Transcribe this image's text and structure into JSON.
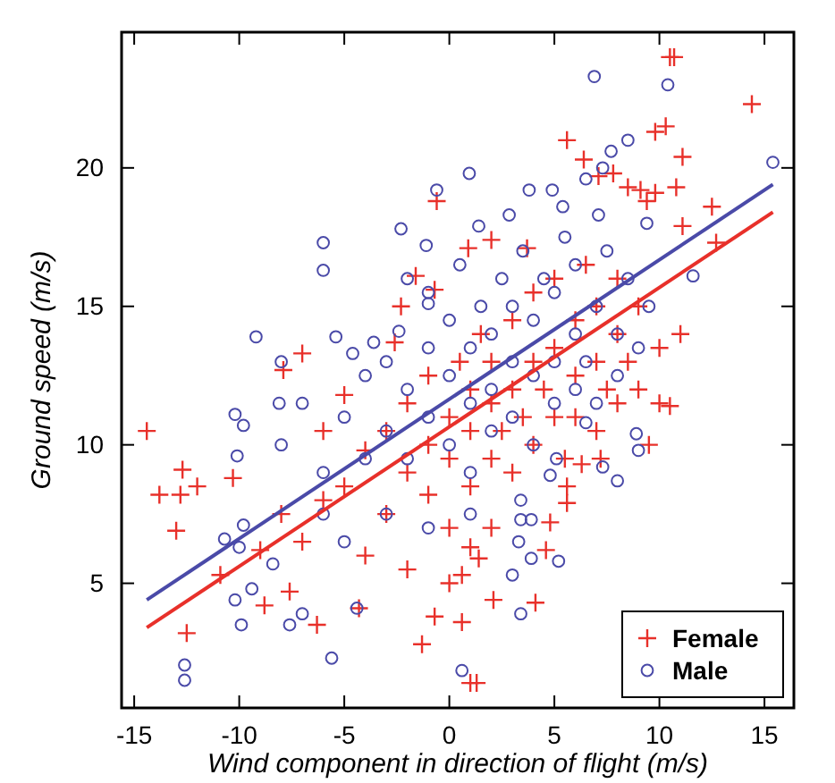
{
  "chart_data": {
    "type": "scatter",
    "xlabel": "Wind component in direction of flight (m/s)",
    "ylabel": "Ground speed (m/s)",
    "xlim": [
      -15.6,
      16.4
    ],
    "ylim": [
      0.5,
      24.9
    ],
    "xticks": [
      -15,
      -10,
      -5,
      0,
      5,
      10,
      15
    ],
    "yticks": [
      5,
      10,
      15,
      20
    ],
    "grid": false,
    "legend": "bottom right",
    "series": [
      {
        "name": "Female",
        "color": "#e8302a",
        "marker": "cross",
        "x": [
          -0.6,
          -1.6,
          -2.3,
          -0.7,
          -2.6,
          -7.0,
          10.5,
          10.7,
          14.4,
          5.6,
          9.8,
          10.3,
          11.1,
          6.4,
          7.1,
          7.8,
          8.5,
          9.1,
          10.8,
          9.4,
          9.8,
          12.5,
          11.1,
          12.7,
          0.9,
          2.0,
          3.7,
          -14.4,
          -12.7,
          -12.0,
          -13.8,
          -12.8,
          -13.0,
          -10.3,
          -12.5,
          -10.9,
          -8.8,
          -7.9,
          -6.3,
          -4.3,
          -1.3,
          -0.7,
          -7.6,
          10.5,
          9.5,
          5.6,
          5.6,
          4.8,
          2.1,
          4.1,
          0.6,
          1.0,
          1.3,
          0.6,
          1.0,
          1.4,
          4.6,
          6.3,
          7.2,
          -5,
          -4,
          -3,
          -3,
          -2,
          -2,
          -1,
          -1,
          -1,
          0,
          0,
          0,
          0.5,
          1,
          1,
          1,
          1.5,
          2,
          2,
          2,
          2.5,
          3,
          3,
          3,
          3.5,
          4,
          4,
          4,
          4.5,
          5,
          5,
          5,
          5.5,
          6,
          6,
          6,
          6.5,
          7,
          7,
          7,
          7.5,
          8,
          8,
          8,
          8.5,
          9,
          9,
          10,
          10,
          11,
          -6,
          -7,
          -8,
          -6,
          -4,
          -2,
          -9,
          -5,
          2,
          0
        ],
        "values": [
          18.8,
          16.1,
          15.0,
          15.6,
          13.7,
          13.3,
          24.0,
          24.0,
          22.3,
          21.0,
          21.3,
          21.5,
          20.4,
          20.3,
          19.7,
          19.8,
          19.3,
          19.2,
          19.3,
          18.8,
          19.1,
          18.6,
          17.9,
          17.3,
          17.1,
          17.4,
          17.1,
          10.5,
          9.1,
          8.5,
          8.2,
          8.2,
          6.9,
          8.8,
          3.2,
          5.3,
          4.2,
          12.7,
          3.5,
          4.1,
          2.8,
          3.8,
          4.7,
          11.4,
          10.0,
          7.9,
          8.5,
          7.2,
          4.4,
          4.3,
          3.6,
          1.4,
          1.4,
          5.3,
          6.3,
          5.9,
          6.2,
          9.3,
          9.5,
          8.5,
          9.8,
          7.5,
          10.5,
          9,
          11.5,
          8.2,
          10,
          12.5,
          9.5,
          11,
          7,
          13,
          10.5,
          8.5,
          12,
          14,
          9.5,
          11.5,
          13,
          10.5,
          12,
          14.5,
          9,
          11,
          13,
          10,
          15.5,
          12,
          11,
          13.5,
          16,
          9.5,
          12.5,
          14.5,
          11,
          16.5,
          13,
          10.5,
          15,
          12,
          14,
          11.5,
          16,
          13,
          12,
          15,
          13.5,
          11.5,
          14,
          8,
          6.5,
          7.5,
          10.5,
          6,
          5.5,
          6.2,
          11.8,
          7,
          5
        ]
      },
      {
        "name": "Male",
        "color": "#4a4aa8",
        "marker": "circle",
        "x": [
          -0.6,
          -2.3,
          -6.0,
          -6.0,
          -1.1,
          -9.2,
          -5.4,
          -3.6,
          -4.6,
          -1.0,
          -2.4,
          6.9,
          10.4,
          15.4,
          0.95,
          3.8,
          4.9,
          8.5,
          7.7,
          7.3,
          6.5,
          2.85,
          1.4,
          11.6,
          5.4,
          7.1,
          9.4,
          -12.6,
          -12.6,
          -10.7,
          -10.2,
          -9.9,
          -10.2,
          -9.8,
          -10.1,
          -8.1,
          -5.6,
          -7.6,
          -7.0,
          -4.4,
          -9.8,
          -9.4,
          -8.4,
          0.6,
          3.4,
          3.0,
          5.2,
          3.9,
          3.3,
          3.4,
          3.9,
          8.0,
          7.3,
          3.4,
          9.0,
          8.9,
          6.5,
          4.8,
          5.1,
          -5,
          -4,
          -4,
          -3,
          -3,
          -2,
          -2,
          -1,
          -1,
          -1,
          0,
          0,
          0,
          0.5,
          1,
          1,
          1,
          1.5,
          2,
          2,
          2,
          2.5,
          3,
          3,
          3,
          3.5,
          4,
          4,
          4,
          4.5,
          5,
          5,
          5,
          5.5,
          6,
          6,
          6,
          6.5,
          7,
          7,
          7.5,
          8,
          8,
          8.5,
          9,
          9.5,
          -6,
          -7,
          -8,
          -6,
          -5,
          -3,
          -1,
          1,
          -8,
          -2,
          -10
        ],
        "values": [
          19.2,
          17.8,
          17.3,
          16.3,
          17.2,
          13.9,
          13.9,
          13.7,
          13.3,
          15.1,
          14.1,
          23.3,
          23.0,
          20.2,
          19.8,
          19.2,
          19.2,
          21.0,
          20.6,
          20.0,
          19.6,
          18.3,
          17.9,
          16.1,
          18.6,
          18.3,
          18.0,
          2.05,
          1.5,
          6.6,
          4.4,
          3.5,
          11.1,
          10.7,
          9.6,
          11.5,
          2.3,
          3.5,
          3.9,
          4.1,
          7.1,
          4.8,
          5.7,
          1.85,
          3.9,
          5.3,
          5.8,
          5.9,
          6.5,
          7.3,
          7.3,
          8.7,
          9.2,
          8.0,
          9.8,
          10.4,
          10.8,
          8.9,
          9.5,
          11,
          12.5,
          9.5,
          10.5,
          13,
          12,
          9.5,
          11,
          13.5,
          15.5,
          12.5,
          10,
          14.5,
          16.5,
          11.5,
          13.5,
          9,
          15,
          12,
          14,
          10.5,
          16,
          13,
          11,
          15,
          17,
          12.5,
          14.5,
          10,
          16,
          13,
          15.5,
          11.5,
          17.5,
          14,
          12,
          16.5,
          13,
          15,
          11.5,
          17,
          14,
          12.5,
          16,
          13.5,
          15,
          9,
          11.5,
          10,
          7.5,
          6.5,
          7.5,
          7,
          7.5,
          13,
          16,
          6.3
        ]
      },
      {
        "type": "line",
        "color": "#e8302a",
        "x": [
          -14.4,
          15.4
        ],
        "values": [
          3.4,
          18.4
        ]
      },
      {
        "type": "line",
        "color": "#4a4aa8",
        "x": [
          -14.4,
          15.4
        ],
        "values": [
          4.4,
          19.4
        ]
      }
    ]
  }
}
